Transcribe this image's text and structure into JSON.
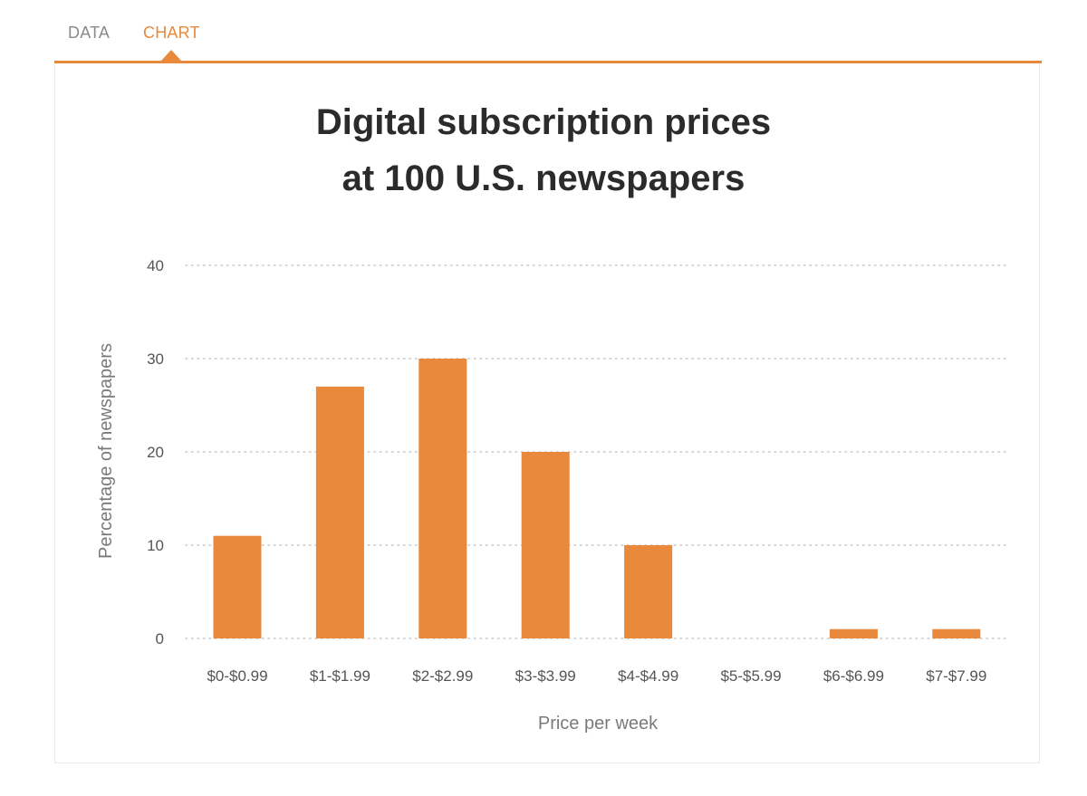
{
  "tabs": [
    {
      "label": "DATA",
      "active": false
    },
    {
      "label": "CHART",
      "active": true
    }
  ],
  "colors": {
    "accent": "#e8893c",
    "bar": "#e8893c",
    "grid": "#c8c8c8",
    "tab_inactive": "#8a8a8a"
  },
  "chart_data": {
    "type": "bar",
    "title_lines": [
      "Digital subscription prices",
      "at 100 U.S. newspapers"
    ],
    "categories": [
      "$0-$0.99",
      "$1-$1.99",
      "$2-$2.99",
      "$3-$3.99",
      "$4-$4.99",
      "$5-$5.99",
      "$6-$6.99",
      "$7-$7.99"
    ],
    "values": [
      11,
      27,
      30,
      20,
      10,
      0,
      1,
      1
    ],
    "xlabel": "Price per week",
    "ylabel": "Percentage of newspapers",
    "ylim": [
      0,
      40
    ],
    "yticks": [
      0,
      10,
      20,
      30,
      40
    ],
    "grid": true
  }
}
